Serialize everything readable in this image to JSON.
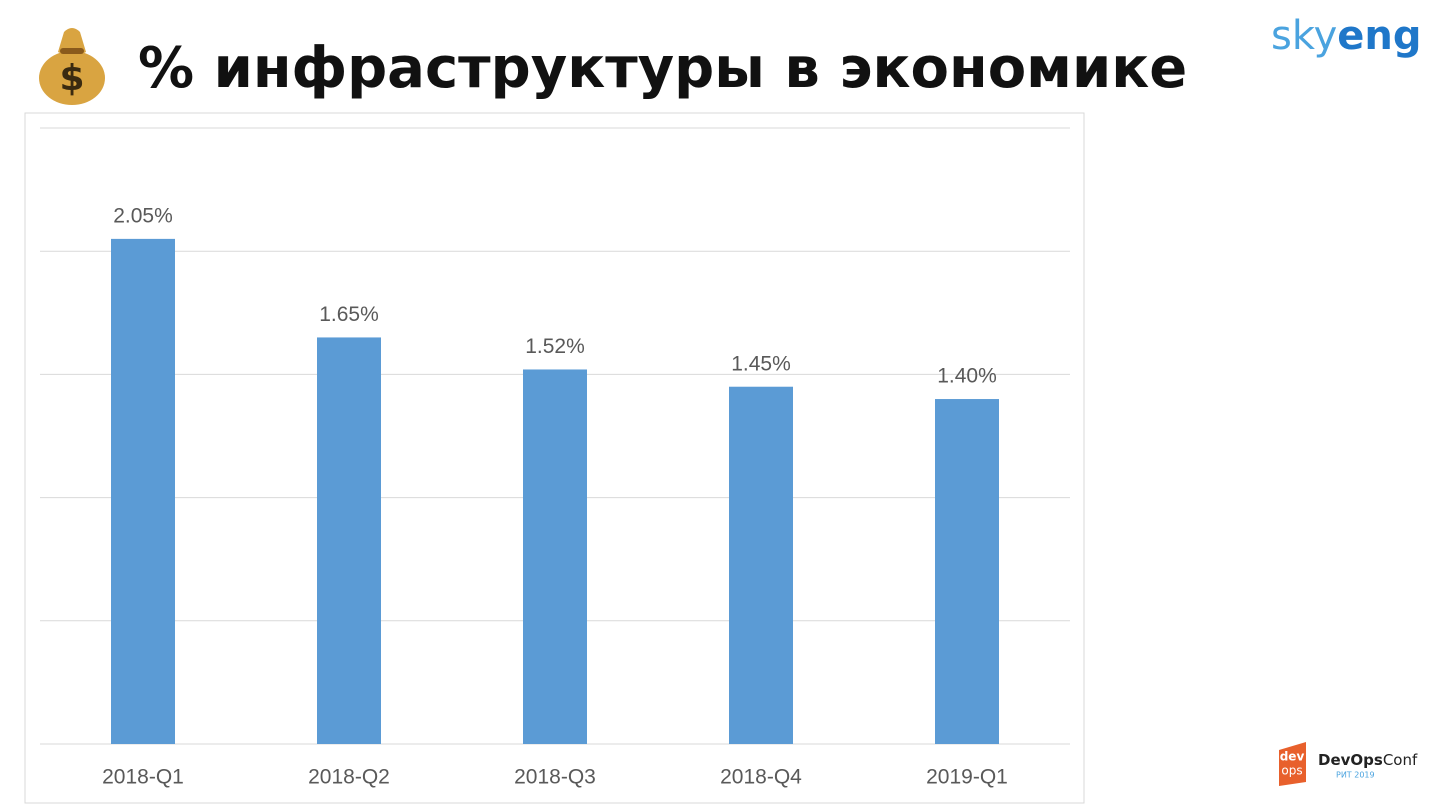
{
  "chart_data": {
    "type": "bar",
    "title": "% инфраструктуры в экономике",
    "categories": [
      "2018-Q1",
      "2018-Q2",
      "2018-Q3",
      "2018-Q4",
      "2019-Q1"
    ],
    "values": [
      2.05,
      1.65,
      1.52,
      1.45,
      1.4
    ],
    "value_labels": [
      "2.05%",
      "1.65%",
      "1.52%",
      "1.45%",
      "1.40%"
    ],
    "color": "#5b9bd5",
    "ylim": [
      0,
      2.5
    ],
    "yticks": [
      0,
      0.5,
      1,
      1.5,
      2,
      2.5
    ],
    "grid": true
  },
  "branding": {
    "logo_a": "sky",
    "logo_b": "eng",
    "badge_top": "dev",
    "badge_bottom": "ops",
    "conf_a": "DevOps",
    "conf_b": "Conf",
    "conf_sub": "РИТ 2019"
  }
}
